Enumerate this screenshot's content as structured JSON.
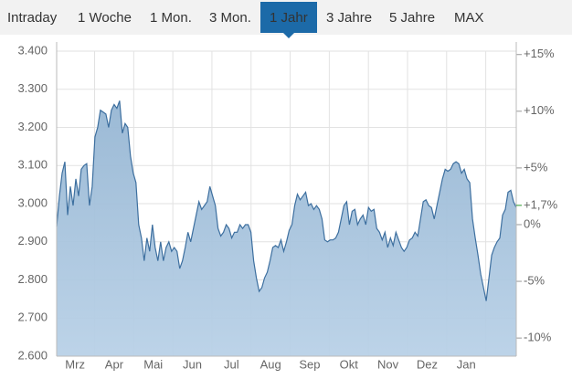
{
  "tabs": [
    "Intraday",
    "1 Woche",
    "1 Mon.",
    "3 Mon.",
    "1 Jahr",
    "3 Jahre",
    "5 Jahre",
    "MAX"
  ],
  "active_tab": 4,
  "chart_data": {
    "type": "area",
    "color": "#3d6f9f",
    "fill": "#a9c6df",
    "months": [
      "Mrz",
      "Apr",
      "Mai",
      "Jun",
      "Jul",
      "Aug",
      "Sep",
      "Okt",
      "Nov",
      "Dez",
      "Jan"
    ],
    "values": [
      2940,
      3020,
      3080,
      3110,
      2970,
      3045,
      2995,
      3065,
      3020,
      3090,
      3100,
      3105,
      2995,
      3045,
      3175,
      3200,
      3245,
      3240,
      3235,
      3200,
      3245,
      3260,
      3250,
      3270,
      3185,
      3210,
      3200,
      3125,
      3080,
      3055,
      2945,
      2910,
      2850,
      2910,
      2875,
      2945,
      2885,
      2850,
      2900,
      2850,
      2885,
      2900,
      2875,
      2885,
      2875,
      2830,
      2850,
      2885,
      2925,
      2900,
      2935,
      2970,
      3005,
      2985,
      2995,
      3005,
      3045,
      3020,
      2995,
      2935,
      2915,
      2925,
      2945,
      2935,
      2910,
      2925,
      2925,
      2945,
      2935,
      2945,
      2945,
      2925,
      2850,
      2805,
      2770,
      2780,
      2805,
      2820,
      2850,
      2885,
      2890,
      2885,
      2905,
      2875,
      2900,
      2930,
      2945,
      2995,
      3025,
      3010,
      3020,
      3030,
      2995,
      3000,
      2985,
      2995,
      2985,
      2960,
      2905,
      2900,
      2905,
      2905,
      2910,
      2925,
      2960,
      2995,
      3005,
      2945,
      2980,
      2985,
      2945,
      2960,
      2970,
      2945,
      2990,
      2980,
      2985,
      2935,
      2925,
      2905,
      2925,
      2885,
      2910,
      2890,
      2925,
      2905,
      2885,
      2875,
      2885,
      2905,
      2910,
      2925,
      2915,
      2960,
      3005,
      3010,
      2995,
      2990,
      2960,
      2995,
      3030,
      3065,
      3090,
      3085,
      3090,
      3105,
      3110,
      3105,
      3080,
      3090,
      3065,
      3055,
      2960,
      2910,
      2865,
      2815,
      2780,
      2745,
      2805,
      2865,
      2885,
      2900,
      2910,
      2970,
      2985,
      3030,
      3035,
      3005,
      2990
    ],
    "ylim": [
      2600,
      3400
    ],
    "yticks": [
      {
        "value": 2600,
        "label": "2.600"
      },
      {
        "value": 2700,
        "label": "2.700"
      },
      {
        "value": 2800,
        "label": "2.800"
      },
      {
        "value": 2900,
        "label": "2.900"
      },
      {
        "value": 3000,
        "label": "3.000"
      },
      {
        "value": 3100,
        "label": "3.100"
      },
      {
        "value": 3200,
        "label": "3.200"
      },
      {
        "value": 3300,
        "label": "3.300"
      },
      {
        "value": 3400,
        "label": "3.400"
      }
    ],
    "y2lim": [
      -11.6,
      15.3
    ],
    "y2ticks": [
      {
        "value": -10,
        "label": "-10%"
      },
      {
        "value": -5,
        "label": "-5%"
      },
      {
        "value": 0,
        "label": "0%"
      },
      {
        "value": 5,
        "label": "+5%"
      },
      {
        "value": 10,
        "label": "+10%"
      },
      {
        "value": 15,
        "label": "+15%"
      }
    ],
    "change": {
      "value": 1.7,
      "label": "+1,7%"
    },
    "change_color": "#2a9a2a",
    "grid": true
  }
}
